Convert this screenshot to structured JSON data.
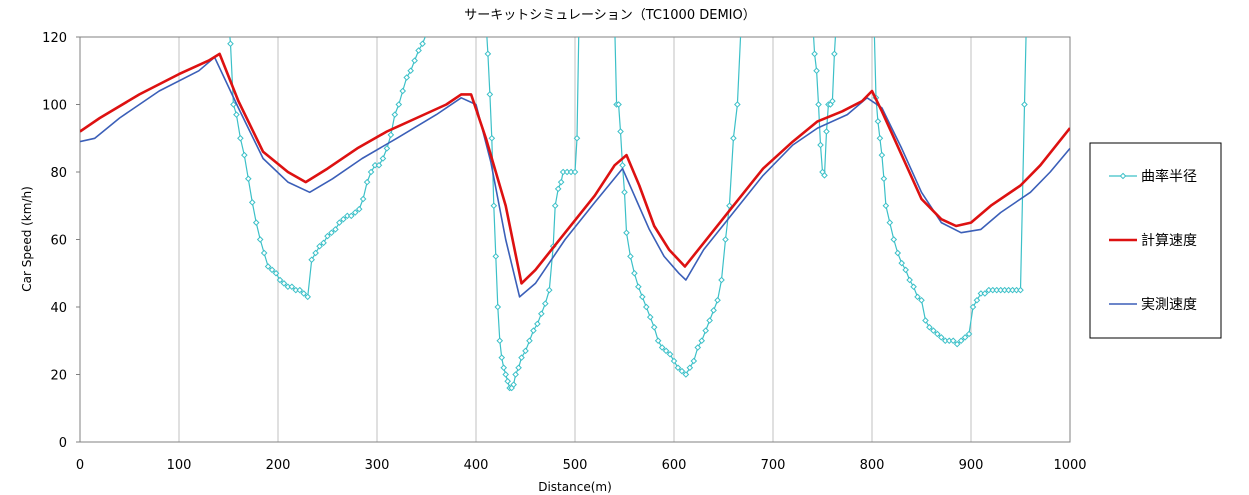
{
  "chart_data": {
    "type": "line",
    "title": "サーキットシミュレーション（TC1000 DEMIO）",
    "xlabel": "Distance(m)",
    "ylabel": "Car Speed (km/h)",
    "xlim": [
      0,
      1000
    ],
    "ylim": [
      0,
      120
    ],
    "x_ticks": [
      "0",
      "100",
      "200",
      "300",
      "400",
      "500",
      "600",
      "700",
      "800",
      "900",
      "1000"
    ],
    "y_ticks": [
      "0",
      "20",
      "40",
      "60",
      "80",
      "100",
      "120"
    ],
    "grid": "vertical",
    "legend_position": "right",
    "series": [
      {
        "name": "曲率半径",
        "color": "#3cc0c8",
        "marker": "diamond",
        "points": [
          [
            150,
            125
          ],
          [
            152,
            118
          ],
          [
            155,
            100
          ],
          [
            158,
            97
          ],
          [
            162,
            90
          ],
          [
            166,
            85
          ],
          [
            170,
            78
          ],
          [
            174,
            71
          ],
          [
            178,
            65
          ],
          [
            182,
            60
          ],
          [
            186,
            56
          ],
          [
            190,
            52
          ],
          [
            194,
            51
          ],
          [
            198,
            50
          ],
          [
            202,
            48
          ],
          [
            206,
            47
          ],
          [
            210,
            46
          ],
          [
            214,
            46
          ],
          [
            218,
            45
          ],
          [
            222,
            45
          ],
          [
            226,
            44
          ],
          [
            230,
            43
          ],
          [
            234,
            54
          ],
          [
            238,
            56
          ],
          [
            242,
            58
          ],
          [
            246,
            59
          ],
          [
            250,
            61
          ],
          [
            254,
            62
          ],
          [
            258,
            63
          ],
          [
            262,
            65
          ],
          [
            266,
            66
          ],
          [
            270,
            67
          ],
          [
            274,
            67
          ],
          [
            278,
            68
          ],
          [
            282,
            69
          ],
          [
            286,
            72
          ],
          [
            290,
            77
          ],
          [
            294,
            80
          ],
          [
            298,
            82
          ],
          [
            302,
            82
          ],
          [
            306,
            84
          ],
          [
            310,
            87
          ],
          [
            314,
            91
          ],
          [
            318,
            97
          ],
          [
            322,
            100
          ],
          [
            326,
            104
          ],
          [
            330,
            108
          ],
          [
            334,
            110
          ],
          [
            338,
            113
          ],
          [
            342,
            116
          ],
          [
            346,
            118
          ],
          [
            350,
            121
          ],
          [
            352,
            125
          ],
          [
            410,
            125
          ],
          [
            412,
            115
          ],
          [
            414,
            103
          ],
          [
            416,
            90
          ],
          [
            418,
            70
          ],
          [
            420,
            55
          ],
          [
            422,
            40
          ],
          [
            424,
            30
          ],
          [
            426,
            25
          ],
          [
            428,
            22
          ],
          [
            430,
            20
          ],
          [
            432,
            18
          ],
          [
            434,
            16
          ],
          [
            436,
            16
          ],
          [
            438,
            17
          ],
          [
            440,
            20
          ],
          [
            443,
            22
          ],
          [
            446,
            25
          ],
          [
            450,
            27
          ],
          [
            454,
            30
          ],
          [
            458,
            33
          ],
          [
            462,
            35
          ],
          [
            466,
            38
          ],
          [
            470,
            41
          ],
          [
            474,
            45
          ],
          [
            478,
            58
          ],
          [
            480,
            70
          ],
          [
            483,
            75
          ],
          [
            486,
            77
          ],
          [
            488,
            80
          ],
          [
            492,
            80
          ],
          [
            496,
            80
          ],
          [
            500,
            80
          ],
          [
            502,
            90
          ],
          [
            504,
            125
          ],
          [
            540,
            125
          ],
          [
            542,
            100
          ],
          [
            544,
            100
          ],
          [
            546,
            92
          ],
          [
            548,
            82
          ],
          [
            550,
            74
          ],
          [
            552,
            62
          ],
          [
            556,
            55
          ],
          [
            560,
            50
          ],
          [
            564,
            46
          ],
          [
            568,
            43
          ],
          [
            572,
            40
          ],
          [
            576,
            37
          ],
          [
            580,
            34
          ],
          [
            584,
            30
          ],
          [
            588,
            28
          ],
          [
            592,
            27
          ],
          [
            596,
            26
          ],
          [
            600,
            24
          ],
          [
            604,
            22
          ],
          [
            608,
            21
          ],
          [
            612,
            20
          ],
          [
            616,
            22
          ],
          [
            620,
            24
          ],
          [
            624,
            28
          ],
          [
            628,
            30
          ],
          [
            632,
            33
          ],
          [
            636,
            36
          ],
          [
            640,
            39
          ],
          [
            644,
            42
          ],
          [
            648,
            48
          ],
          [
            652,
            60
          ],
          [
            656,
            70
          ],
          [
            660,
            90
          ],
          [
            664,
            100
          ],
          [
            668,
            125
          ],
          [
            740,
            125
          ],
          [
            742,
            115
          ],
          [
            744,
            110
          ],
          [
            746,
            100
          ],
          [
            748,
            88
          ],
          [
            750,
            80
          ],
          [
            752,
            79
          ],
          [
            754,
            92
          ],
          [
            756,
            100
          ],
          [
            758,
            100
          ],
          [
            760,
            101
          ],
          [
            762,
            115
          ],
          [
            764,
            125
          ],
          [
            802,
            125
          ],
          [
            804,
            102
          ],
          [
            806,
            95
          ],
          [
            808,
            90
          ],
          [
            810,
            85
          ],
          [
            812,
            78
          ],
          [
            814,
            70
          ],
          [
            818,
            65
          ],
          [
            822,
            60
          ],
          [
            826,
            56
          ],
          [
            830,
            53
          ],
          [
            834,
            51
          ],
          [
            838,
            48
          ],
          [
            842,
            46
          ],
          [
            846,
            43
          ],
          [
            850,
            42
          ],
          [
            854,
            36
          ],
          [
            858,
            34
          ],
          [
            862,
            33
          ],
          [
            866,
            32
          ],
          [
            870,
            31
          ],
          [
            874,
            30
          ],
          [
            878,
            30
          ],
          [
            882,
            30
          ],
          [
            886,
            29
          ],
          [
            890,
            30
          ],
          [
            894,
            31
          ],
          [
            898,
            32
          ],
          [
            902,
            40
          ],
          [
            906,
            42
          ],
          [
            910,
            44
          ],
          [
            914,
            44
          ],
          [
            918,
            45
          ],
          [
            922,
            45
          ],
          [
            926,
            45
          ],
          [
            930,
            45
          ],
          [
            934,
            45
          ],
          [
            938,
            45
          ],
          [
            942,
            45
          ],
          [
            946,
            45
          ],
          [
            950,
            45
          ],
          [
            954,
            100
          ],
          [
            956,
            125
          ]
        ]
      },
      {
        "name": "計算速度",
        "color": "#dd1111",
        "points": [
          [
            0,
            92
          ],
          [
            20,
            96
          ],
          [
            60,
            103
          ],
          [
            100,
            109
          ],
          [
            130,
            113
          ],
          [
            141,
            115
          ],
          [
            160,
            101
          ],
          [
            185,
            86
          ],
          [
            210,
            80
          ],
          [
            228,
            77
          ],
          [
            250,
            81
          ],
          [
            280,
            87
          ],
          [
            310,
            92
          ],
          [
            340,
            96
          ],
          [
            370,
            100
          ],
          [
            385,
            103
          ],
          [
            395,
            103
          ],
          [
            410,
            90
          ],
          [
            430,
            70
          ],
          [
            446,
            47
          ],
          [
            460,
            51
          ],
          [
            490,
            62
          ],
          [
            520,
            73
          ],
          [
            540,
            82
          ],
          [
            552,
            85
          ],
          [
            565,
            76
          ],
          [
            580,
            64
          ],
          [
            595,
            57
          ],
          [
            611,
            52
          ],
          [
            630,
            59
          ],
          [
            660,
            70
          ],
          [
            690,
            81
          ],
          [
            720,
            89
          ],
          [
            745,
            95
          ],
          [
            770,
            98
          ],
          [
            790,
            101
          ],
          [
            800,
            104
          ],
          [
            810,
            98
          ],
          [
            830,
            85
          ],
          [
            850,
            72
          ],
          [
            870,
            66
          ],
          [
            885,
            64
          ],
          [
            900,
            65
          ],
          [
            920,
            70
          ],
          [
            950,
            76
          ],
          [
            970,
            82
          ],
          [
            1000,
            93
          ]
        ]
      },
      {
        "name": "実測速度",
        "color": "#3b5fb8",
        "points": [
          [
            0,
            89
          ],
          [
            15,
            90
          ],
          [
            40,
            96
          ],
          [
            80,
            104
          ],
          [
            120,
            110
          ],
          [
            136,
            114
          ],
          [
            160,
            99
          ],
          [
            185,
            84
          ],
          [
            210,
            77
          ],
          [
            232,
            74
          ],
          [
            255,
            78
          ],
          [
            285,
            84
          ],
          [
            320,
            90
          ],
          [
            360,
            97
          ],
          [
            385,
            102
          ],
          [
            400,
            100
          ],
          [
            415,
            83
          ],
          [
            430,
            60
          ],
          [
            444,
            43
          ],
          [
            460,
            47
          ],
          [
            490,
            60
          ],
          [
            520,
            71
          ],
          [
            548,
            81
          ],
          [
            560,
            73
          ],
          [
            575,
            63
          ],
          [
            590,
            55
          ],
          [
            605,
            50
          ],
          [
            612,
            48
          ],
          [
            630,
            57
          ],
          [
            660,
            68
          ],
          [
            690,
            79
          ],
          [
            720,
            88
          ],
          [
            745,
            93
          ],
          [
            775,
            97
          ],
          [
            795,
            102
          ],
          [
            810,
            99
          ],
          [
            830,
            87
          ],
          [
            850,
            74
          ],
          [
            870,
            65
          ],
          [
            890,
            62
          ],
          [
            910,
            63
          ],
          [
            930,
            68
          ],
          [
            960,
            74
          ],
          [
            980,
            80
          ],
          [
            1000,
            87
          ]
        ]
      }
    ]
  }
}
